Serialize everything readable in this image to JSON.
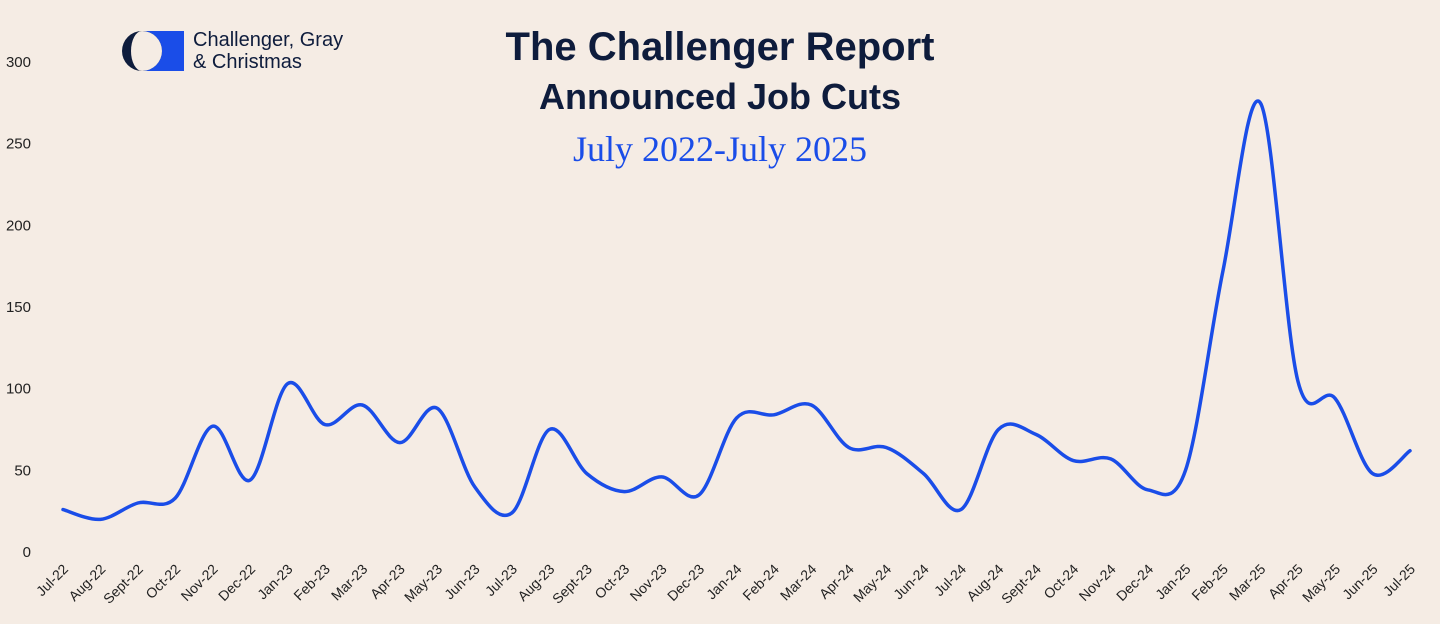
{
  "logo": {
    "line1": "Challenger, Gray",
    "line2": "& Christmas",
    "colors": {
      "dark": "#0e1c3c",
      "accent": "#1a4de8"
    }
  },
  "colors": {
    "background": "#f5ece4",
    "line": "#1a4de8",
    "title": "#0e1c3c",
    "subtitle": "#1a4de8"
  },
  "chart_data": {
    "type": "line",
    "title": "The Challenger Report",
    "subtitle_line1": "Announced Job Cuts",
    "subtitle_line2": "July 2022-July 2025",
    "xlabel": "",
    "ylabel": "",
    "ylim": [
      0,
      300
    ],
    "yticks": [
      0,
      50,
      100,
      150,
      200,
      250,
      300
    ],
    "grid": false,
    "legend": "none",
    "categories": [
      "Jul-22",
      "Aug-22",
      "Sept-22",
      "Oct-22",
      "Nov-22",
      "Dec-22",
      "Jan-23",
      "Feb-23",
      "Mar-23",
      "Apr-23",
      "May-23",
      "Jun-23",
      "Jul-23",
      "Aug-23",
      "Sept-23",
      "Oct-23",
      "Nov-23",
      "Dec-23",
      "Jan-24",
      "Feb-24",
      "Mar-24",
      "Apr-24",
      "May-24",
      "Jun-24",
      "Jul-24",
      "Aug-24",
      "Sept-24",
      "Oct-24",
      "Nov-24",
      "Dec-24",
      "Jan-25",
      "Feb-25",
      "Mar-25",
      "Apr-25",
      "May-25",
      "Jun-25",
      "Jul-25"
    ],
    "series": [
      {
        "values": [
          26,
          20,
          30,
          33,
          77,
          44,
          103,
          78,
          90,
          67,
          88,
          40,
          24,
          75,
          48,
          37,
          46,
          35,
          82,
          84,
          90,
          64,
          64,
          48,
          26,
          75,
          72,
          56,
          57,
          38,
          50,
          172,
          275,
          105,
          94,
          48,
          62
        ]
      }
    ]
  }
}
